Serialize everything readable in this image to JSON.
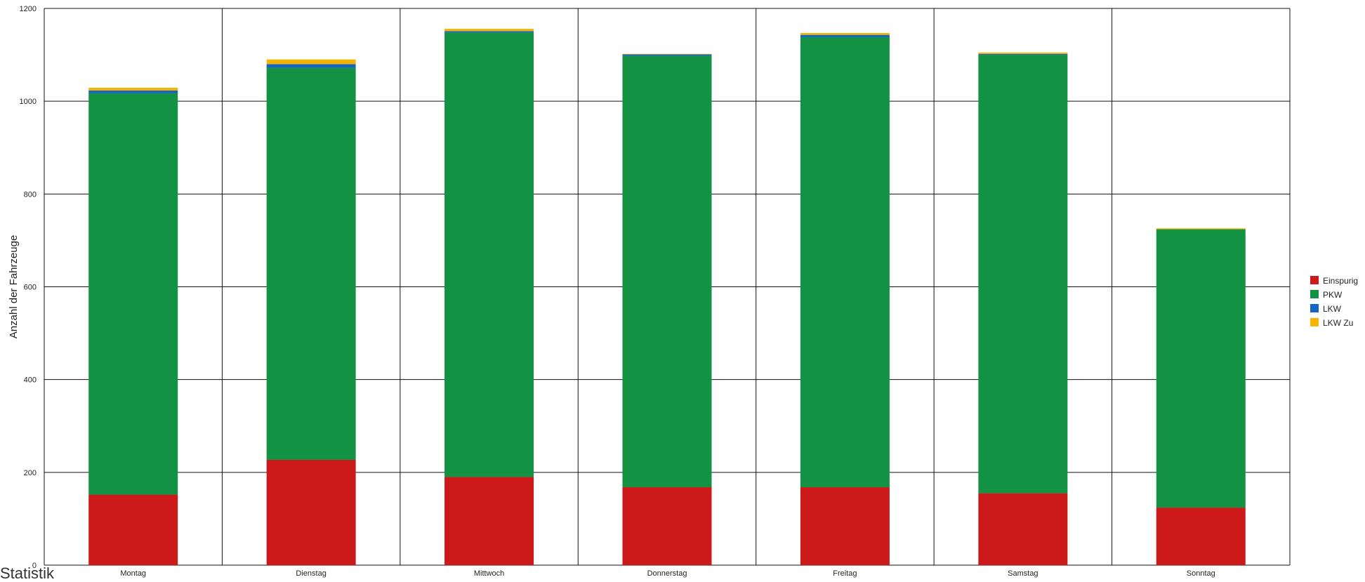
{
  "chart_data": {
    "type": "bar",
    "stacked": true,
    "categories": [
      "Montag",
      "Dienstag",
      "Mittwoch",
      "Donnerstag",
      "Freitag",
      "Samstag",
      "Sonntag"
    ],
    "series": [
      {
        "name": "Einspurig",
        "color": "#cc1a1a",
        "values": [
          152,
          227,
          190,
          168,
          168,
          155,
          124
        ]
      },
      {
        "name": "PKW",
        "color": "#139244",
        "values": [
          865,
          845,
          958,
          930,
          970,
          945,
          600
        ]
      },
      {
        "name": "LKW",
        "color": "#1565c0",
        "values": [
          6,
          8,
          3,
          3,
          5,
          2,
          0
        ]
      },
      {
        "name": "LKW Zu",
        "color": "#f4b400",
        "values": [
          6,
          10,
          5,
          1,
          4,
          3,
          2
        ]
      }
    ],
    "ylabel": "Anzahl der Fahrzeuge",
    "ylim": [
      0,
      1200
    ],
    "yticks": [
      0,
      200,
      400,
      600,
      800,
      1000,
      1200
    ],
    "ytick_labels": [
      "0",
      "200",
      "400",
      "600",
      "800",
      "1000",
      "1200"
    ],
    "grid": true,
    "legend_position": "right"
  },
  "footer_text": "Statistik"
}
